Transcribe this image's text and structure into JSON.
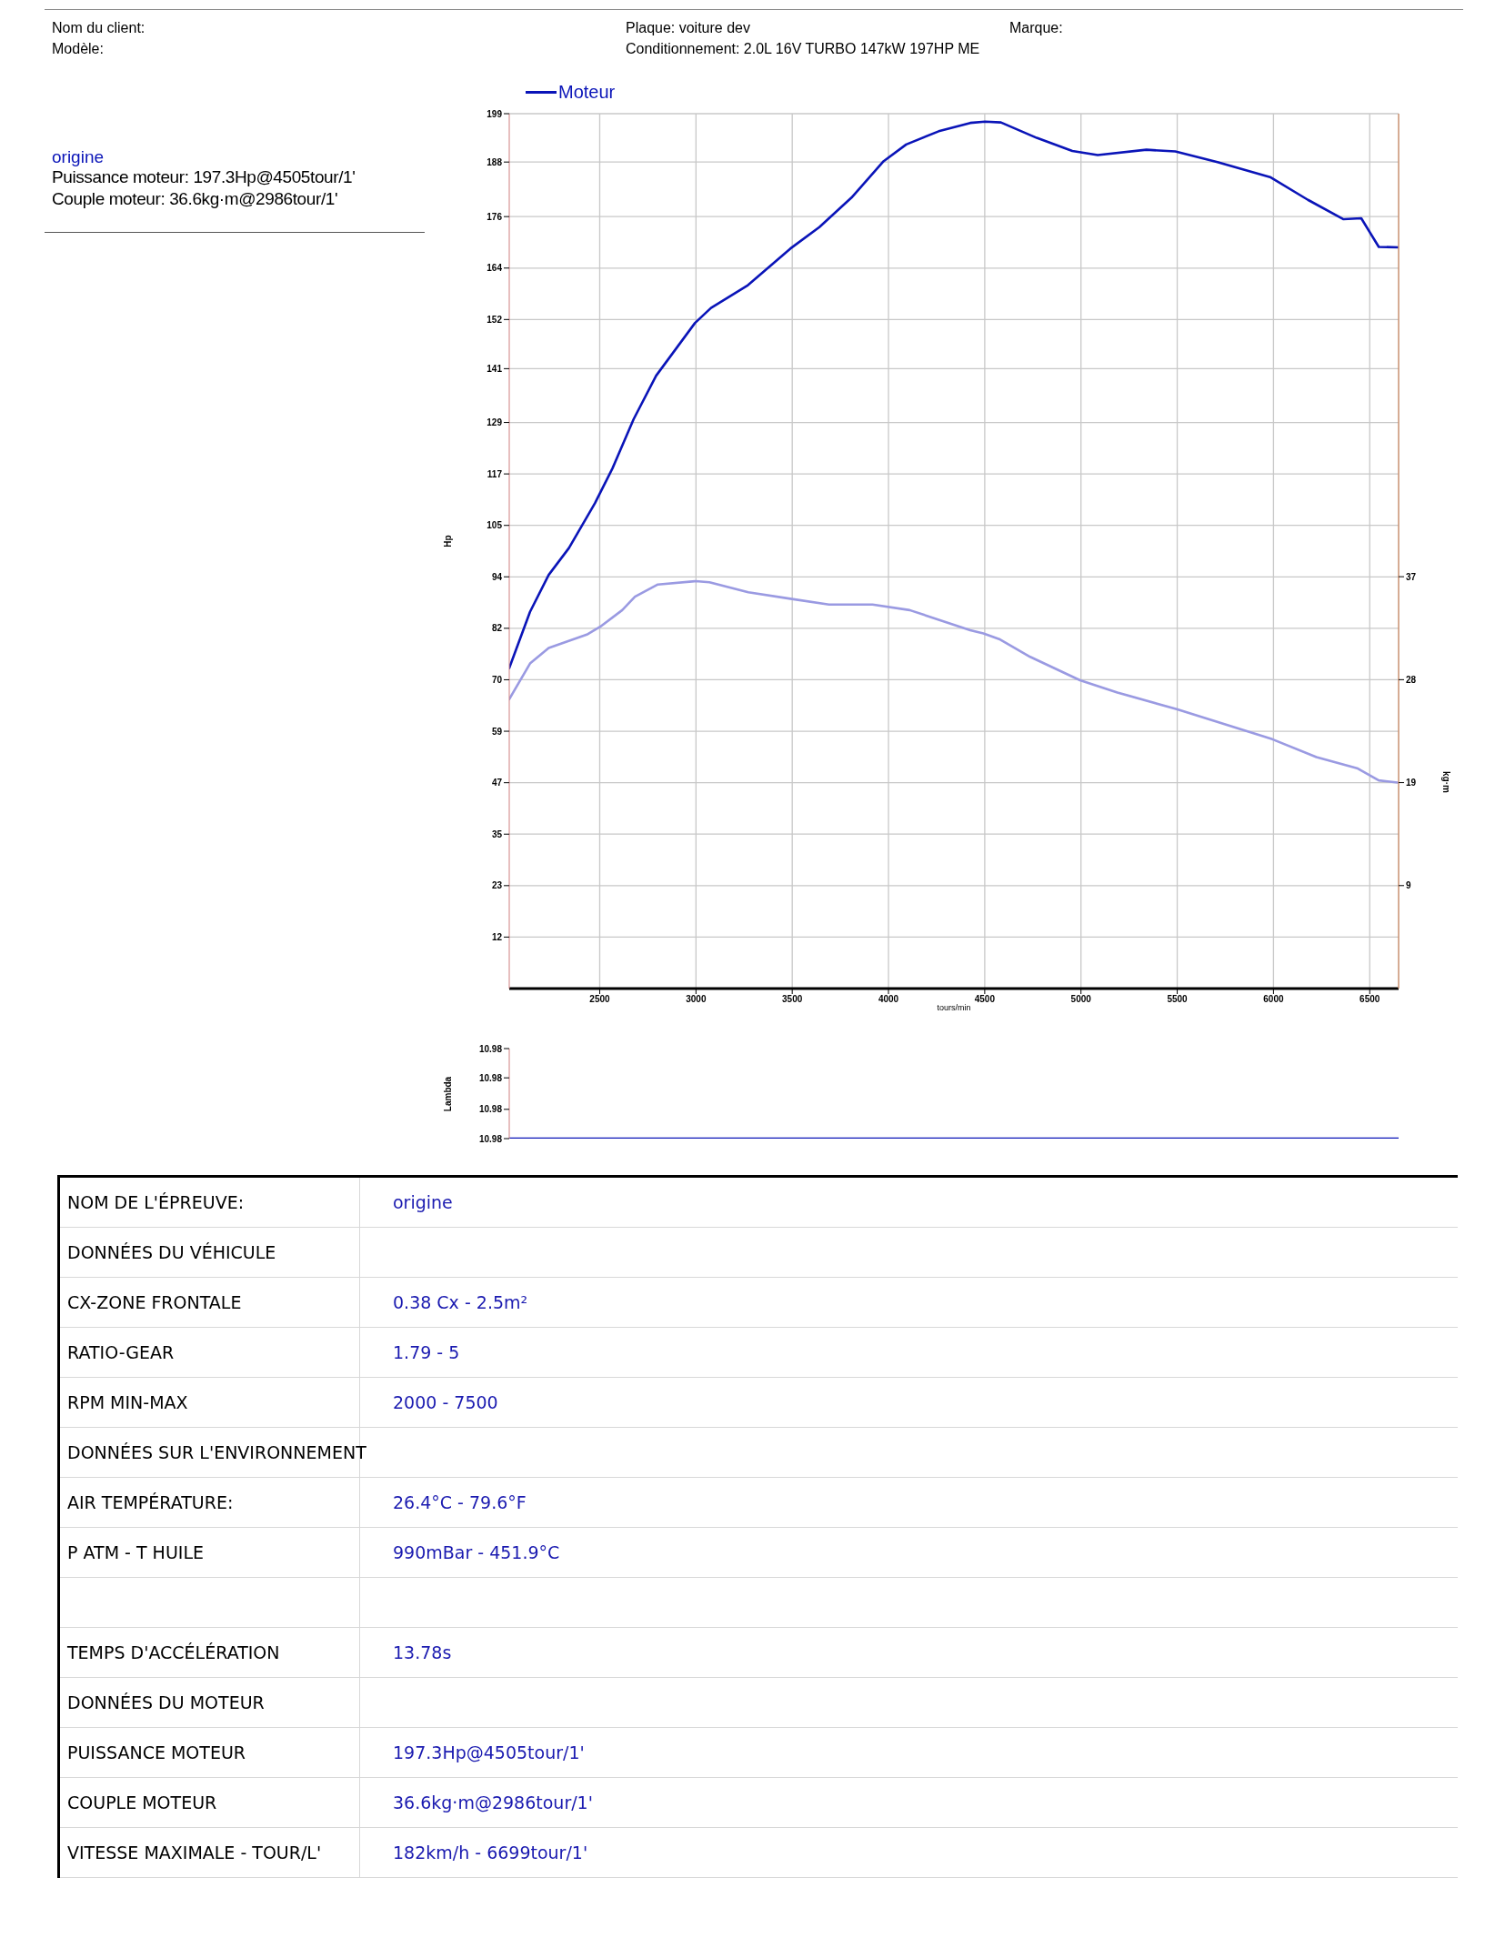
{
  "chart_data": [
    {
      "type": "line",
      "xlabel": "tours/min",
      "ylabel": "Hp",
      "y2label": "kg·m",
      "xlim": [
        2030,
        6650
      ],
      "xticks": [
        2500,
        3000,
        3500,
        4000,
        4500,
        5000,
        5500,
        6000,
        6500
      ],
      "ylim": [
        0,
        199
      ],
      "yticks": [
        {
          "value": 11.71,
          "label": "12"
        },
        {
          "value": 23.41,
          "label": "23"
        },
        {
          "value": 35.12,
          "label": "35"
        },
        {
          "value": 46.82,
          "label": "47"
        },
        {
          "value": 58.53,
          "label": "59"
        },
        {
          "value": 70.24,
          "label": "70"
        },
        {
          "value": 81.94,
          "label": "82"
        },
        {
          "value": 93.65,
          "label": "94"
        },
        {
          "value": 105.35,
          "label": "105"
        },
        {
          "value": 117.06,
          "label": "117"
        },
        {
          "value": 128.76,
          "label": "129"
        },
        {
          "value": 141,
          "label": "141"
        },
        {
          "value": 152.18,
          "label": "152"
        },
        {
          "value": 163.88,
          "label": "164"
        },
        {
          "value": 175.59,
          "label": "176"
        },
        {
          "value": 188,
          "label": "188"
        },
        {
          "value": 199,
          "label": "199"
        }
      ],
      "y2lim": [
        0,
        78.6
      ],
      "y2ticks": [
        {
          "value": 9.25,
          "label": "9"
        },
        {
          "value": 18.5,
          "label": "19"
        },
        {
          "value": 27.75,
          "label": "28"
        },
        {
          "value": 37,
          "label": "37"
        }
      ],
      "grid": true,
      "legend": "top left",
      "series": [
        {
          "name": "Moteur",
          "color": "#0a14b8",
          "x": [
            2030,
            2138,
            2235,
            2340,
            2475,
            2566,
            2676,
            2793,
            2995,
            3078,
            3270,
            3490,
            3641,
            3808,
            3975,
            4092,
            4261,
            4425,
            4502,
            4584,
            4770,
            4955,
            5087,
            5340,
            5490,
            5709,
            5986,
            6179,
            6364,
            6456,
            6547,
            6650
          ],
          "values": [
            72.9,
            85.7,
            94.1,
            100.2,
            110.4,
            118.3,
            129.5,
            139.4,
            151.4,
            154.8,
            160,
            168.3,
            173.2,
            179.9,
            188.2,
            192,
            195,
            196.9,
            197.2,
            197,
            193.5,
            190.5,
            189.6,
            190.8,
            190.4,
            188,
            184.5,
            179.4,
            175,
            175.2,
            168.7,
            168.6
          ]
        },
        {
          "color": "#9a9ae2",
          "axis": "y2",
          "x": [
            2030,
            2138,
            2235,
            2433,
            2502,
            2617,
            2683,
            2802,
            2998,
            3070,
            3272,
            3498,
            3691,
            3917,
            4110,
            4425,
            4493,
            4575,
            4736,
            4995,
            5189,
            5497,
            5994,
            6223,
            6434,
            6547,
            6645
          ],
          "values": [
            26.0,
            29.2,
            30.6,
            31.8,
            32.5,
            34.0,
            35.2,
            36.3,
            36.6,
            36.5,
            35.6,
            35.0,
            34.5,
            34.5,
            34.0,
            32.2,
            31.9,
            31.4,
            29.8,
            27.7,
            26.6,
            25.1,
            22.4,
            20.8,
            19.8,
            18.7,
            18.5
          ]
        }
      ],
      "annotations": [
        "Nom du client:",
        "Modèle:",
        "Plaque: voiture dev",
        "Conditionnement: 2.0L 16V TURBO 147kW 197HP ME",
        "Marque:",
        "origine",
        "Puissance moteur: 197.3Hp@4505tour/1'",
        "Couple moteur: 36.6kg·m@2986tour/1'"
      ]
    },
    {
      "type": "line",
      "ylabel": "Lambda",
      "xlim": [
        2030,
        6650
      ],
      "xticks": [
        2500,
        3000,
        3500,
        4000,
        4500,
        5000,
        5500,
        6000,
        6500
      ],
      "ylim": [
        10.98,
        10.984
      ],
      "yticks": [
        {
          "value": 10.98,
          "label": "10.98"
        },
        {
          "value": 10.9813,
          "label": "10.98"
        },
        {
          "value": 10.9827,
          "label": "10.98"
        },
        {
          "value": 10.984,
          "label": "10.98"
        }
      ],
      "grid": "x",
      "tick_labels": "y",
      "series": [
        {
          "color": "#0a14b8",
          "x": [
            2030,
            6650
          ],
          "values": [
            10.98,
            10.98
          ]
        }
      ]
    },
    {
      "type": "other",
      "y_categories": [
        "NOM DE L'ÉPREUVE:",
        "DONNÉES DU VÉHICULE",
        "CX-ZONE FRONTALE",
        "RATIO-GEAR",
        "RPM MIN-MAX",
        "DONNÉES SUR L'ENVIRONNEMENT",
        "AIR TEMPÉRATURE:",
        "P ATM - T HUILE",
        null,
        "TEMPS D'ACCÉLÉRATION",
        "DONNÉES DU MOTEUR",
        "PUISSANCE MOTEUR",
        "COUPLE MOTEUR",
        "VITESSE MAXIMALE - TOUR/L'"
      ],
      "cell_labels": [
        [
          "origine"
        ],
        [
          null
        ],
        [
          "0.38 Cx - 2.5m²"
        ],
        [
          "1.79 - 5"
        ],
        [
          "2000 - 7500"
        ],
        [
          null
        ],
        [
          "26.4°C - 79.6°F"
        ],
        [
          "990mBar - 451.9°C"
        ],
        [
          null
        ],
        [
          "13.78s"
        ],
        [
          null
        ],
        [
          "197.3Hp@4505tour/1'"
        ],
        [
          "36.6kg·m@2986tour/1'"
        ],
        [
          "182km/h - 6699tour/1'"
        ]
      ]
    }
  ]
}
